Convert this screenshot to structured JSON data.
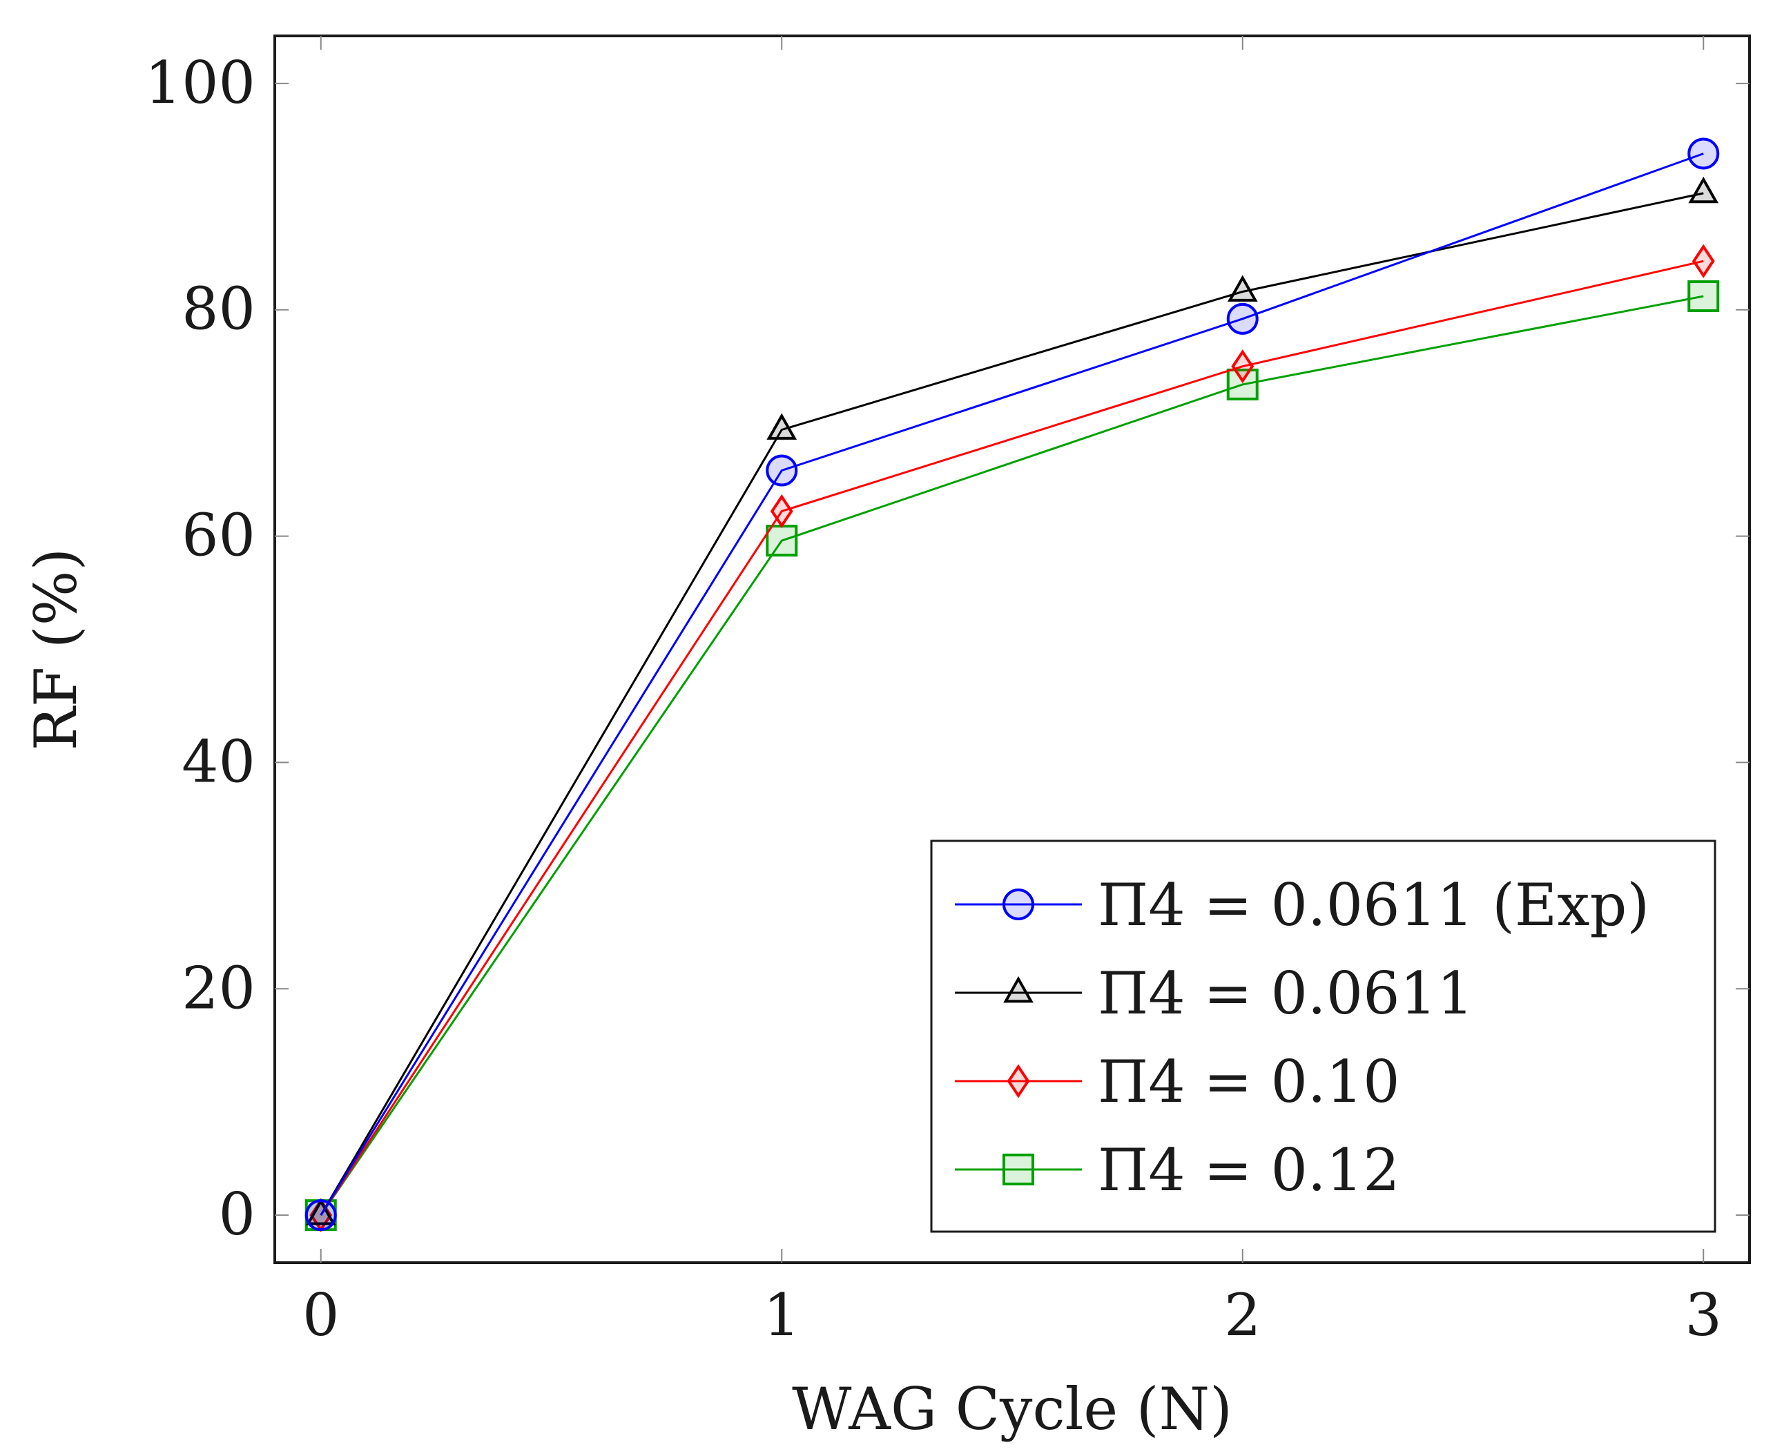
{
  "chart_data": {
    "type": "line",
    "title": "",
    "xlabel": "WAG Cycle (N)",
    "ylabel": "RF (%)",
    "x": [
      0,
      1,
      2,
      3
    ],
    "xlim": [
      -0.1,
      3.1
    ],
    "ylim": [
      -4.2,
      104.2
    ],
    "xticks": [
      0,
      1,
      2,
      3
    ],
    "xtick_labels": [
      "0",
      "1",
      "2",
      "3"
    ],
    "yticks": [
      0,
      20,
      40,
      60,
      80,
      100
    ],
    "ytick_labels": [
      "0",
      "20",
      "40",
      "60",
      "80",
      "100"
    ],
    "grid": false,
    "legend_position": "bottom-right",
    "series": [
      {
        "name": "Π4 = 0.0611 (Exp)",
        "color": "#0000ff",
        "marker": "circle",
        "values": [
          0,
          65.8,
          79.2,
          93.8
        ]
      },
      {
        "name": "Π4 = 0.0611",
        "color": "#000000",
        "marker": "triangle",
        "values": [
          0,
          69.4,
          81.6,
          90.3
        ]
      },
      {
        "name": "Π4 = 0.10",
        "color": "#ff0000",
        "marker": "diamond",
        "values": [
          0,
          62.2,
          75.0,
          84.3
        ]
      },
      {
        "name": "Π4 = 0.12",
        "color": "#00a000",
        "marker": "square",
        "values": [
          0,
          59.6,
          73.4,
          81.2
        ]
      }
    ]
  }
}
